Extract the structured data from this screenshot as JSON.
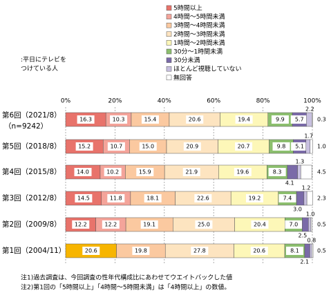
{
  "chart_data": {
    "type": "stacked-bar-horizontal",
    "note": ":平日にテレビを\nつけている人",
    "categories": [
      "第6回（2021/8）",
      "第5回（2018/8）",
      "第4回（2015/8）",
      "第3回（2012/8）",
      "第2回（2009/8）",
      "第1回（2004/11）"
    ],
    "sample_size": "（n=9242）",
    "xlim": [
      0,
      100
    ],
    "xticks": [
      {
        "value": 0,
        "label": "0%"
      },
      {
        "value": 20,
        "label": "20%"
      },
      {
        "value": 40,
        "label": "40%"
      },
      {
        "value": 60,
        "label": "60%"
      },
      {
        "value": 80,
        "label": "80%"
      },
      {
        "value": 100,
        "label": "100%"
      }
    ],
    "grid": true,
    "series": [
      {
        "name": "5時間以上",
        "color": "#e8736b",
        "values": [
          16.3,
          15.2,
          14.0,
          14.5,
          12.2,
          null
        ],
        "value_labels": [
          "16.3",
          "15.2",
          "14.0",
          "14.5",
          "12.2",
          null
        ]
      },
      {
        "name": "4時間～5時間未満",
        "color": "#f4a49a",
        "colors": [
          "#f4a49a",
          "#f4a49a",
          "#f4a49a",
          "#f4a49a",
          "#f4a49a",
          "#f7b500"
        ],
        "values": [
          10.3,
          10.7,
          10.2,
          11.8,
          12.2,
          20.6
        ],
        "value_labels": [
          "10.3",
          "10.7",
          "10.2",
          "11.8",
          "12.2",
          "20.6"
        ]
      },
      {
        "name": "3時間～4時間未満",
        "color": "#fbc9a0",
        "values": [
          15.4,
          15.0,
          15.9,
          18.1,
          19.1,
          19.8
        ],
        "value_labels": [
          "15.4",
          "15.0",
          "15.9",
          "18.1",
          "19.1",
          "19.8"
        ]
      },
      {
        "name": "2時間～3時間未満",
        "color": "#fde4c0",
        "values": [
          20.6,
          20.9,
          21.9,
          22.6,
          25.0,
          27.8
        ],
        "value_labels": [
          "20.6",
          "20.9",
          "21.9",
          "22.6",
          "25.0",
          "27.8"
        ]
      },
      {
        "name": "1時間～2時間未満",
        "color": "#fdf7b8",
        "values": [
          19.4,
          20.7,
          19.6,
          19.2,
          20.4,
          20.6
        ],
        "value_labels": [
          "19.4",
          "20.7",
          "19.6",
          "19.2",
          "20.4",
          "20.6"
        ]
      },
      {
        "name": "30分～1時間未満",
        "color": "#8cbf6e",
        "values": [
          9.9,
          9.8,
          8.3,
          7.4,
          7.0,
          8.1
        ],
        "value_labels": [
          "9.9",
          "9.8",
          "8.3",
          "7.4",
          "7.0",
          "8.1"
        ]
      },
      {
        "name": "30分未満",
        "color": "#7a6aa8",
        "values": [
          5.7,
          5.1,
          4.1,
          3.0,
          2.5,
          2.1
        ],
        "value_labels": [
          "5.7",
          "5.1",
          "4.1",
          "3.0",
          "2.5",
          "2.1"
        ]
      },
      {
        "name": "ほとんど視聴していない",
        "color": "#c8c0e0",
        "values": [
          2.2,
          1.7,
          1.3,
          1.2,
          1.0,
          0.8
        ],
        "value_labels": [
          "2.2",
          "1.7",
          "1.3",
          "1.2",
          "1.0",
          "0.8"
        ]
      },
      {
        "name": "無回答",
        "color": "#ffffff",
        "values": [
          0.3,
          1.0,
          4.5,
          2.3,
          0.5,
          0.5
        ],
        "value_labels": [
          "0.3",
          "1.0",
          "4.5",
          "2.3",
          "0.5",
          "0.5"
        ]
      }
    ],
    "footnotes": [
      "注1)過去調査は、今回調査の性年代構成比にあわせてウエイトバックした値",
      "注2)第1回の「5時間以上」「4時間～5時間未満」は「4時間以上」の数値。"
    ]
  }
}
